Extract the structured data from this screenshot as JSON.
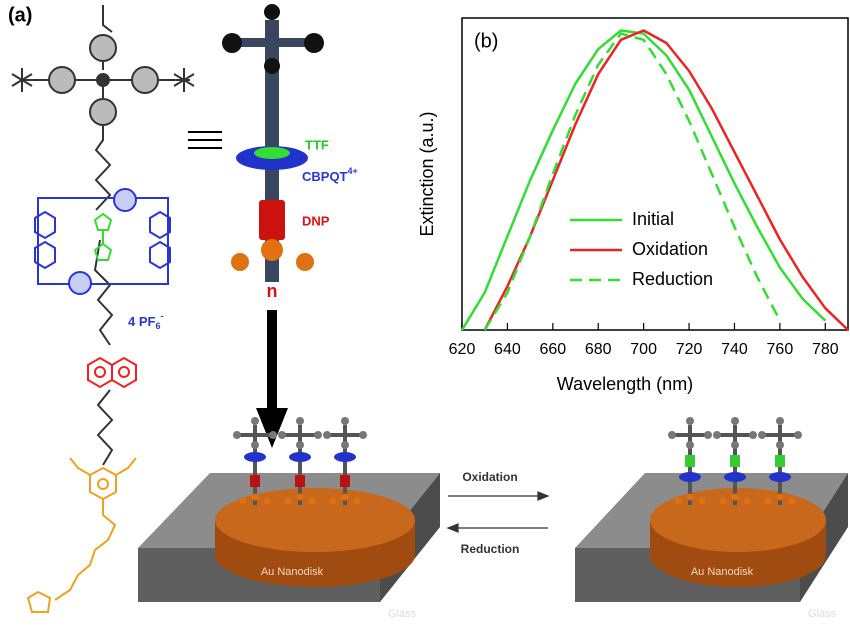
{
  "panel_a": {
    "label": "(a)",
    "rotaxane_labels": {
      "ttf": "TTF",
      "cbpqt": {
        "text": "CBPQT",
        "sup": "4+"
      },
      "dnp": "DNP",
      "repeat": "n"
    },
    "counterion": {
      "text": "4 PF",
      "sub": "6",
      "sup": "-"
    },
    "switch": {
      "forward": "Oxidation",
      "backward": "Reduction"
    },
    "devices": [
      {
        "disk": "Au Nanodisk",
        "substrate": "Glass"
      },
      {
        "disk": "Au Nanodisk",
        "substrate": "Glass"
      }
    ]
  },
  "chart_data": {
    "type": "line",
    "label": "(b)",
    "xlabel": "Wavelength (nm)",
    "ylabel": "Extinction (a.u.)",
    "x": [
      620,
      630,
      640,
      650,
      660,
      670,
      680,
      690,
      700,
      710,
      720,
      730,
      740,
      750,
      760,
      770,
      780,
      790
    ],
    "series": [
      {
        "name": "Initial",
        "color": "#33dd33",
        "dash": false,
        "values": [
          0.0,
          0.12,
          0.3,
          0.48,
          0.64,
          0.79,
          0.9,
          0.96,
          0.95,
          0.88,
          0.77,
          0.62,
          0.47,
          0.33,
          0.2,
          0.1,
          0.03,
          null
        ]
      },
      {
        "name": "Oxidation",
        "color": "#ee2222",
        "dash": false,
        "values": [
          null,
          0.0,
          0.14,
          0.3,
          0.48,
          0.66,
          0.82,
          0.93,
          0.96,
          0.92,
          0.83,
          0.71,
          0.57,
          0.43,
          0.29,
          0.17,
          0.07,
          0.0
        ]
      },
      {
        "name": "Reduction",
        "color": "#33dd33",
        "dash": true,
        "values": [
          null,
          0.0,
          0.12,
          0.3,
          0.5,
          0.69,
          0.85,
          0.95,
          0.93,
          0.82,
          0.67,
          0.5,
          0.33,
          0.17,
          0.03,
          null,
          null,
          null
        ]
      }
    ],
    "xlim": [
      620,
      790
    ],
    "xticks": [
      620,
      640,
      660,
      680,
      700,
      720,
      740,
      760,
      780
    ],
    "ylim": [
      0,
      1
    ],
    "legend": "lower-center"
  }
}
